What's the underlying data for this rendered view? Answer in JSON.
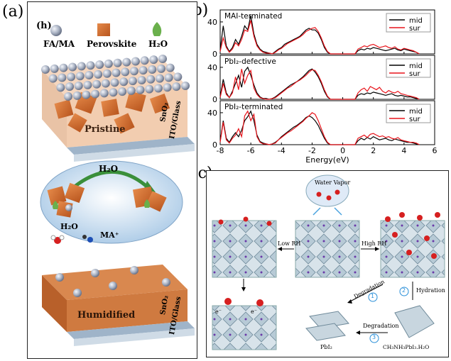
{
  "panel_labels": {
    "a": "(a)",
    "b": "(b)",
    "c": "(c)"
  },
  "panel_a": {
    "sub_label": "(h)",
    "legend": [
      "FA/MA",
      "Perovskite",
      "H₂O"
    ],
    "top_state": "Pristine",
    "bottom_state": "Humidified",
    "layer_sno2": "SnO₂",
    "layer_ito": "ITO/Glass",
    "bubble_h2o": "H₂O",
    "bubble_h2o_small": "H₂O",
    "bubble_ma": "MA⁺"
  },
  "panel_b": {
    "xlabel": "Energy(eV)",
    "x_ticks": [
      "-8",
      "-6",
      "-4",
      "-2",
      "0",
      "2",
      "4",
      "6"
    ],
    "y_ticks": [
      "0",
      "40"
    ],
    "legend": [
      "mid",
      "sur"
    ],
    "colors": {
      "mid": "#000000",
      "sur": "#e8141b"
    }
  },
  "chart_data": [
    {
      "type": "line",
      "title": "MAI-terminated",
      "xlabel": "",
      "ylabel": "",
      "xlim": [
        -8,
        6
      ],
      "ylim": [
        0,
        55
      ],
      "series": [
        {
          "name": "mid",
          "x": [
            -8,
            -7.8,
            -7.6,
            -7.4,
            -7.2,
            -7,
            -6.8,
            -6.6,
            -6.4,
            -6.2,
            -6,
            -5.8,
            -5.6,
            -5.4,
            -5.2,
            -5,
            -4.8,
            -4.6,
            -4.4,
            -4.2,
            -4,
            -3.8,
            -3.6,
            -3.4,
            -3.2,
            -3,
            -2.8,
            -2.6,
            -2.4,
            -2.2,
            -2,
            -1.8,
            -1.6,
            -1.4,
            -1.2,
            -1,
            -0.8,
            0.8,
            1,
            1.2,
            1.4,
            1.6,
            1.8,
            2,
            2.2,
            2.4,
            2.6,
            2.8,
            3,
            3.2,
            3.4,
            3.6,
            3.8,
            4,
            4.2,
            4.4,
            4.6,
            4.8,
            5
          ],
          "values": [
            5,
            35,
            10,
            3,
            8,
            18,
            12,
            22,
            35,
            30,
            48,
            25,
            12,
            6,
            3,
            2,
            1,
            0,
            3,
            6,
            8,
            12,
            14,
            16,
            18,
            20,
            22,
            26,
            30,
            32,
            30,
            30,
            26,
            18,
            8,
            2,
            0,
            0,
            4,
            6,
            5,
            7,
            6,
            8,
            7,
            6,
            5,
            4,
            5,
            6,
            7,
            5,
            4,
            6,
            5,
            4,
            3,
            2,
            0
          ]
        },
        {
          "name": "sur",
          "x": [
            -8,
            -7.8,
            -7.6,
            -7.4,
            -7.2,
            -7,
            -6.8,
            -6.6,
            -6.4,
            -6.2,
            -6,
            -5.8,
            -5.6,
            -5.4,
            -5.2,
            -5,
            -4.8,
            -4.6,
            -4.4,
            -4.2,
            -4,
            -3.8,
            -3.6,
            -3.4,
            -3.2,
            -3,
            -2.8,
            -2.6,
            -2.4,
            -2.2,
            -2,
            -1.8,
            -1.6,
            -1.4,
            -1.2,
            -1,
            -0.8,
            0.8,
            1,
            1.2,
            1.4,
            1.6,
            1.8,
            2,
            2.2,
            2.4,
            2.6,
            2.8,
            3,
            3.2,
            3.4,
            3.6,
            3.8,
            4,
            4.2,
            4.4,
            4.6,
            4.8,
            5
          ],
          "values": [
            3,
            20,
            8,
            2,
            6,
            14,
            10,
            18,
            30,
            28,
            42,
            22,
            10,
            5,
            2,
            1,
            1,
            0,
            2,
            5,
            7,
            10,
            13,
            15,
            17,
            19,
            21,
            24,
            28,
            30,
            32,
            33,
            28,
            20,
            10,
            3,
            0,
            0,
            6,
            8,
            10,
            9,
            11,
            12,
            10,
            8,
            9,
            10,
            8,
            7,
            9,
            6,
            5,
            7,
            6,
            5,
            4,
            2,
            0
          ]
        }
      ]
    },
    {
      "type": "line",
      "title": "PbI₂-defective",
      "xlabel": "",
      "ylabel": "",
      "xlim": [
        -8,
        6
      ],
      "ylim": [
        0,
        55
      ],
      "series": [
        {
          "name": "mid",
          "x": [
            -8,
            -7.8,
            -7.6,
            -7.4,
            -7.2,
            -7,
            -6.8,
            -6.6,
            -6.4,
            -6.2,
            -6,
            -5.8,
            -5.6,
            -5.4,
            -5.2,
            -5,
            -4.8,
            -4.6,
            -4.4,
            -4.2,
            -4,
            -3.8,
            -3.6,
            -3.4,
            -3.2,
            -3,
            -2.8,
            -2.6,
            -2.4,
            -2.2,
            -2,
            -1.8,
            -1.6,
            -1.4,
            -1.2,
            -1,
            -0.8,
            0.8,
            1,
            1.2,
            1.4,
            1.6,
            1.8,
            2,
            2.2,
            2.4,
            2.6,
            2.8,
            3,
            3.2,
            3.4,
            3.6,
            3.8,
            4,
            4.2,
            4.4,
            4.6,
            4.8,
            5
          ],
          "values": [
            3,
            25,
            8,
            2,
            10,
            20,
            30,
            15,
            35,
            40,
            30,
            18,
            8,
            3,
            1,
            1,
            0,
            1,
            3,
            6,
            9,
            12,
            15,
            18,
            20,
            22,
            25,
            28,
            32,
            36,
            38,
            34,
            28,
            20,
            10,
            3,
            0,
            0,
            5,
            7,
            6,
            8,
            7,
            9,
            8,
            7,
            6,
            5,
            6,
            7,
            5,
            4,
            5,
            4,
            3,
            3,
            2,
            1,
            0
          ]
        },
        {
          "name": "sur",
          "x": [
            -8,
            -7.8,
            -7.6,
            -7.4,
            -7.2,
            -7,
            -6.8,
            -6.6,
            -6.4,
            -6.2,
            -6,
            -5.8,
            -5.6,
            -5.4,
            -5.2,
            -5,
            -4.8,
            -4.6,
            -4.4,
            -4.2,
            -4,
            -3.8,
            -3.6,
            -3.4,
            -3.2,
            -3,
            -2.8,
            -2.6,
            -2.4,
            -2.2,
            -2,
            -1.8,
            -1.6,
            -1.4,
            -1.2,
            -1,
            -0.8,
            0.8,
            1,
            1.2,
            1.4,
            1.6,
            1.8,
            2,
            2.2,
            2.4,
            2.6,
            2.8,
            3,
            3.2,
            3.4,
            3.6,
            3.8,
            4,
            4.2,
            4.4,
            4.6,
            4.8,
            5
          ],
          "values": [
            2,
            20,
            6,
            2,
            8,
            28,
            12,
            38,
            20,
            30,
            36,
            14,
            6,
            2,
            1,
            0,
            0,
            1,
            2,
            5,
            8,
            11,
            14,
            16,
            19,
            22,
            24,
            27,
            30,
            34,
            37,
            36,
            30,
            22,
            12,
            4,
            0,
            0,
            8,
            12,
            14,
            10,
            16,
            14,
            12,
            15,
            10,
            8,
            11,
            9,
            8,
            10,
            7,
            6,
            5,
            4,
            3,
            2,
            0
          ]
        }
      ]
    },
    {
      "type": "line",
      "title": "PbI₂-terminated",
      "xlabel": "Energy(eV)",
      "ylabel": "",
      "xlim": [
        -8,
        6
      ],
      "ylim": [
        0,
        55
      ],
      "series": [
        {
          "name": "mid",
          "x": [
            -8,
            -7.8,
            -7.6,
            -7.4,
            -7.2,
            -7,
            -6.8,
            -6.6,
            -6.4,
            -6.2,
            -6,
            -5.8,
            -5.6,
            -5.4,
            -5.2,
            -5,
            -4.8,
            -4.6,
            -4.4,
            -4.2,
            -4,
            -3.8,
            -3.6,
            -3.4,
            -3.2,
            -3,
            -2.8,
            -2.6,
            -2.4,
            -2.2,
            -2,
            -1.8,
            -1.6,
            -1.4,
            -1.2,
            -1,
            -0.8,
            0.8,
            1,
            1.2,
            1.4,
            1.6,
            1.8,
            2,
            2.2,
            2.4,
            2.6,
            2.8,
            3,
            3.2,
            3.4,
            3.6,
            3.8,
            4,
            4.2,
            4.4,
            4.6,
            4.8,
            5
          ],
          "values": [
            4,
            30,
            8,
            3,
            10,
            15,
            10,
            18,
            30,
            35,
            42,
            30,
            12,
            4,
            2,
            1,
            0,
            1,
            3,
            6,
            10,
            13,
            16,
            19,
            22,
            24,
            27,
            30,
            34,
            36,
            34,
            30,
            24,
            16,
            8,
            2,
            0,
            0,
            5,
            8,
            6,
            9,
            7,
            10,
            8,
            6,
            7,
            8,
            6,
            5,
            7,
            6,
            5,
            4,
            3,
            3,
            2,
            1,
            0
          ]
        },
        {
          "name": "sur",
          "x": [
            -8,
            -7.8,
            -7.6,
            -7.4,
            -7.2,
            -7,
            -6.8,
            -6.6,
            -6.4,
            -6.2,
            -6,
            -5.8,
            -5.6,
            -5.4,
            -5.2,
            -5,
            -4.8,
            -4.6,
            -4.4,
            -4.2,
            -4,
            -3.8,
            -3.6,
            -3.4,
            -3.2,
            -3,
            -2.8,
            -2.6,
            -2.4,
            -2.2,
            -2,
            -1.8,
            -1.6,
            -1.4,
            -1.2,
            -1,
            -0.8,
            0.8,
            1,
            1.2,
            1.4,
            1.6,
            1.8,
            2,
            2.2,
            2.4,
            2.6,
            2.8,
            3,
            3.2,
            3.4,
            3.6,
            3.8,
            4,
            4.2,
            4.4,
            4.6,
            4.8,
            5
          ],
          "values": [
            3,
            28,
            6,
            2,
            8,
            12,
            20,
            10,
            36,
            42,
            30,
            38,
            10,
            3,
            1,
            1,
            0,
            1,
            2,
            6,
            9,
            12,
            15,
            17,
            20,
            23,
            26,
            29,
            33,
            36,
            40,
            38,
            30,
            20,
            10,
            3,
            0,
            0,
            8,
            10,
            12,
            9,
            13,
            14,
            12,
            10,
            11,
            9,
            10,
            8,
            7,
            9,
            6,
            5,
            4,
            3,
            3,
            2,
            0
          ]
        }
      ]
    }
  ],
  "panel_c": {
    "water_vapor": "Water Vapor",
    "low_rh": "Low RH",
    "high_rh": "High RH",
    "degradation1": "Degradation",
    "degradation3": "Degradation",
    "hydration": "Hydration",
    "step1": "1",
    "step2": "2",
    "step3": "3",
    "pbi2": "PbI₂",
    "hydrate": "CH₃NH₃PbI₃.H₂O",
    "electron1": "e⁻",
    "electron2": "e⁻"
  }
}
